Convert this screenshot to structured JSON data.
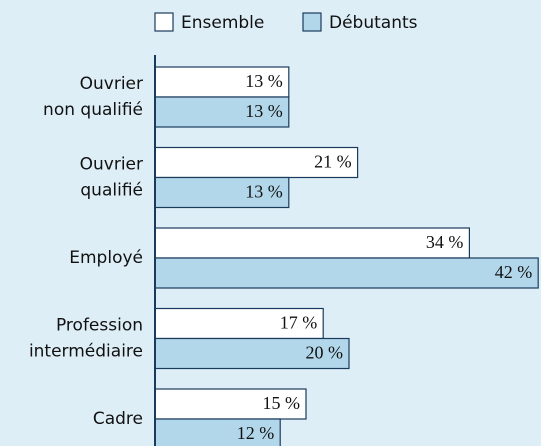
{
  "chart_data": {
    "type": "hbar",
    "categories": [
      [
        "Ouvrier",
        "non qualifié"
      ],
      [
        "Ouvrier",
        "qualifié"
      ],
      [
        "Employé"
      ],
      [
        "Profession",
        "intermédiaire"
      ],
      [
        "Cadre"
      ]
    ],
    "series": [
      {
        "name": "Ensemble",
        "color": "#ffffff",
        "values": [
          13,
          21,
          34,
          17,
          15
        ],
        "value_labels": [
          "13 %",
          "21 %",
          "34 %",
          "17 %",
          "15 %"
        ]
      },
      {
        "name": "Débutants",
        "color": "#b3d7ea",
        "values": [
          13,
          13,
          42,
          20,
          12
        ],
        "value_labels": [
          "13 %",
          "13 %",
          "42 %",
          "20 %",
          "12 %"
        ]
      }
    ],
    "legend": "top"
  }
}
